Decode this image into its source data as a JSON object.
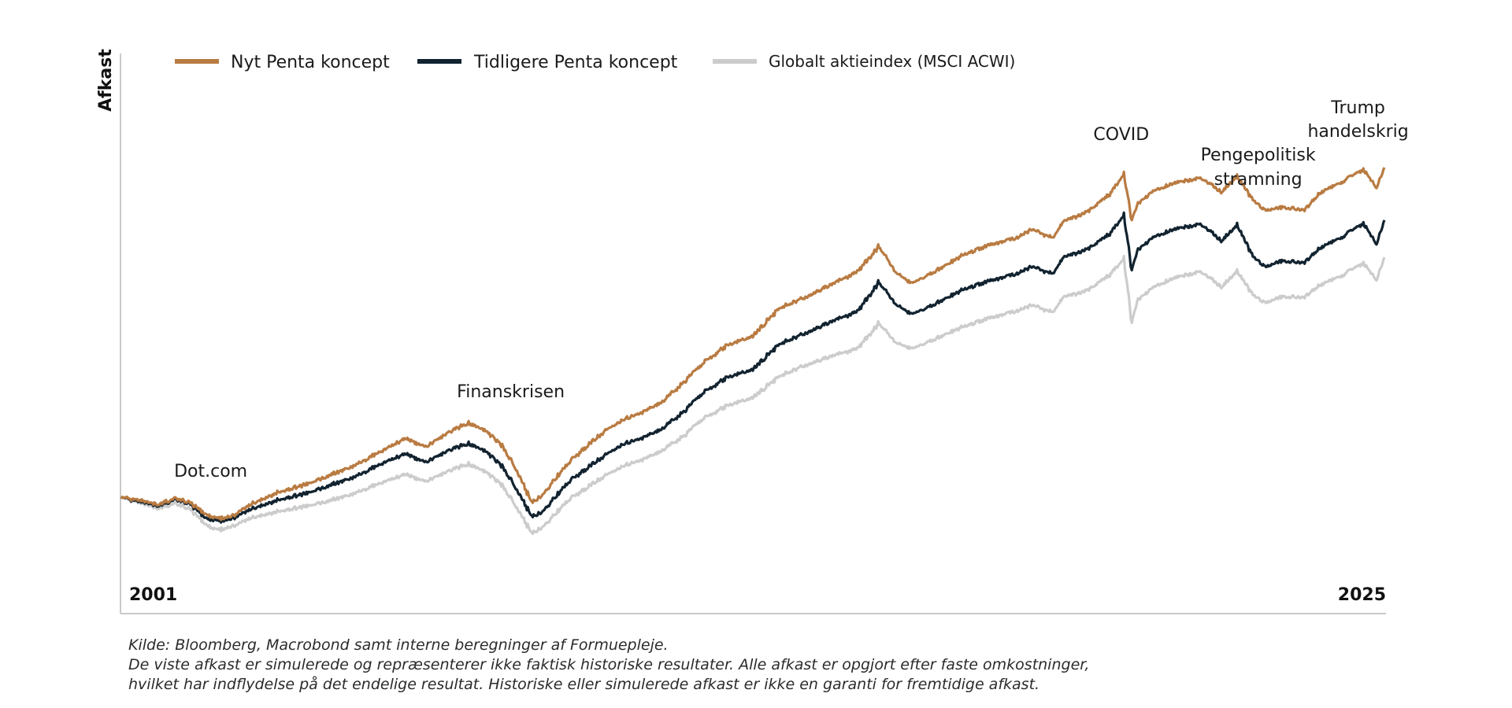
{
  "chart_data": {
    "type": "line",
    "title": "",
    "xlabel": "",
    "ylabel": "Afkast",
    "x_start_label": "2001",
    "x_end_label": "2025",
    "xlim": [
      2001,
      2025
    ],
    "grid": false,
    "legend_position": "top-left",
    "series": [
      {
        "name": "Nyt Penta koncept",
        "color": "#b97b42",
        "x": [
          2001.0,
          2001.3,
          2001.7,
          2002.0,
          2002.3,
          2002.6,
          2002.8,
          2003.1,
          2003.5,
          2004.0,
          2004.5,
          2005.0,
          2005.5,
          2006.0,
          2006.4,
          2006.8,
          2007.2,
          2007.6,
          2007.9,
          2008.2,
          2008.5,
          2008.8,
          2009.0,
          2009.2,
          2009.5,
          2009.8,
          2010.2,
          2010.5,
          2010.9,
          2011.3,
          2011.7,
          2012.0,
          2012.5,
          2013.0,
          2013.5,
          2014.0,
          2014.5,
          2015.0,
          2015.4,
          2015.7,
          2016.0,
          2016.3,
          2016.7,
          2017.0,
          2017.5,
          2018.0,
          2018.3,
          2018.7,
          2018.9,
          2019.3,
          2019.8,
          2020.05,
          2020.2,
          2020.3,
          2020.6,
          2021.0,
          2021.5,
          2021.9,
          2022.2,
          2022.5,
          2022.75,
          2023.0,
          2023.5,
          2023.8,
          2024.2,
          2024.6,
          2024.85,
          2025.0
        ],
        "values": [
          100,
          98,
          94,
          99,
          96,
          87,
          83,
          85,
          95,
          104,
          110,
          118,
          126,
          137,
          146,
          139,
          150,
          158,
          152,
          142,
          122,
          96,
          101,
          112,
          127,
          138,
          152,
          160,
          166,
          175,
          190,
          203,
          218,
          226,
          247,
          256,
          266,
          276,
          296,
          276,
          267,
          272,
          282,
          289,
          297,
          302,
          309,
          302,
          315,
          321,
          337,
          352,
          316,
          328,
          338,
          345,
          349,
          338,
          350,
          332,
          323,
          326,
          324,
          338,
          346,
          356,
          341,
          357
        ]
      },
      {
        "name": "Tidligere Penta koncept",
        "color": "#122330",
        "x": [
          2001.0,
          2001.3,
          2001.7,
          2002.0,
          2002.3,
          2002.6,
          2002.8,
          2003.1,
          2003.5,
          2004.0,
          2004.5,
          2005.0,
          2005.5,
          2006.0,
          2006.4,
          2006.8,
          2007.2,
          2007.6,
          2007.9,
          2008.2,
          2008.5,
          2008.8,
          2009.0,
          2009.2,
          2009.5,
          2009.8,
          2010.2,
          2010.5,
          2010.9,
          2011.3,
          2011.7,
          2012.0,
          2012.5,
          2013.0,
          2013.5,
          2014.0,
          2014.5,
          2015.0,
          2015.4,
          2015.7,
          2016.0,
          2016.3,
          2016.7,
          2017.0,
          2017.5,
          2018.0,
          2018.3,
          2018.7,
          2018.9,
          2019.3,
          2019.8,
          2020.05,
          2020.2,
          2020.3,
          2020.6,
          2021.0,
          2021.5,
          2021.9,
          2022.2,
          2022.5,
          2022.75,
          2023.0,
          2023.5,
          2023.8,
          2024.2,
          2024.6,
          2024.85,
          2025.0
        ],
        "values": [
          100,
          97,
          93,
          98,
          95,
          84,
          81,
          83,
          91,
          98,
          103,
          110,
          117,
          127,
          134,
          127,
          136,
          142,
          136,
          126,
          107,
          85,
          88,
          98,
          112,
          121,
          133,
          141,
          146,
          154,
          167,
          180,
          193,
          200,
          219,
          228,
          237,
          245,
          268,
          251,
          243,
          247,
          256,
          262,
          269,
          274,
          280,
          274,
          287,
          292,
          306,
          320,
          277,
          292,
          302,
          309,
          313,
          300,
          312,
          288,
          279,
          284,
          283,
          295,
          303,
          314,
          297,
          316
        ]
      },
      {
        "name": "Globalt aktieindex (MSCI ACWI)",
        "color": "#cccccc",
        "x": [
          2001.0,
          2001.3,
          2001.7,
          2002.0,
          2002.3,
          2002.6,
          2002.8,
          2003.1,
          2003.5,
          2004.0,
          2004.5,
          2005.0,
          2005.5,
          2006.0,
          2006.4,
          2006.8,
          2007.2,
          2007.6,
          2007.9,
          2008.2,
          2008.5,
          2008.8,
          2009.0,
          2009.2,
          2009.5,
          2009.8,
          2010.2,
          2010.5,
          2010.9,
          2011.3,
          2011.7,
          2012.0,
          2012.5,
          2013.0,
          2013.5,
          2014.0,
          2014.5,
          2015.0,
          2015.4,
          2015.7,
          2016.0,
          2016.3,
          2016.7,
          2017.0,
          2017.5,
          2018.0,
          2018.3,
          2018.7,
          2018.9,
          2019.3,
          2019.8,
          2020.05,
          2020.2,
          2020.3,
          2020.6,
          2021.0,
          2021.5,
          2021.9,
          2022.2,
          2022.5,
          2022.75,
          2023.0,
          2023.5,
          2023.8,
          2024.2,
          2024.6,
          2024.85,
          2025.0
        ],
        "values": [
          100,
          96,
          91,
          95,
          91,
          79,
          74,
          77,
          84,
          89,
          93,
          98,
          104,
          112,
          118,
          112,
          120,
          126,
          120,
          111,
          93,
          72,
          76,
          85,
          98,
          106,
          117,
          124,
          129,
          137,
          148,
          160,
          171,
          178,
          194,
          203,
          210,
          216,
          236,
          221,
          216,
          220,
          228,
          233,
          240,
          245,
          250,
          244,
          256,
          260,
          274,
          286,
          236,
          253,
          263,
          271,
          276,
          264,
          276,
          258,
          251,
          256,
          256,
          266,
          273,
          283,
          269,
          287
        ]
      }
    ],
    "annotations": [
      {
        "label": "Dot.com",
        "x": 2002.7
      },
      {
        "label": "Finanskrisen",
        "x": 2008.4
      },
      {
        "label": "COVID",
        "x": 2020.0
      },
      {
        "label": "Pengepolitisk stramning",
        "lines": [
          "Pengepolitisk",
          "stramning"
        ],
        "x": 2022.6
      },
      {
        "label": "Trump handelskrig",
        "lines": [
          "Trump",
          "handelskrig"
        ],
        "x": 2024.5
      }
    ]
  },
  "footer": {
    "line1": "Kilde: Bloomberg, Macrobond samt interne beregninger af Formuepleje.",
    "line2": "De viste afkast er simulerede og repræsenterer ikke faktisk historiske resultater. Alle afkast er opgjort efter faste omkostninger,",
    "line3": "hvilket har indflydelse på det endelige resultat. Historiske eller simulerede afkast er ikke en garanti for fremtidige afkast."
  }
}
